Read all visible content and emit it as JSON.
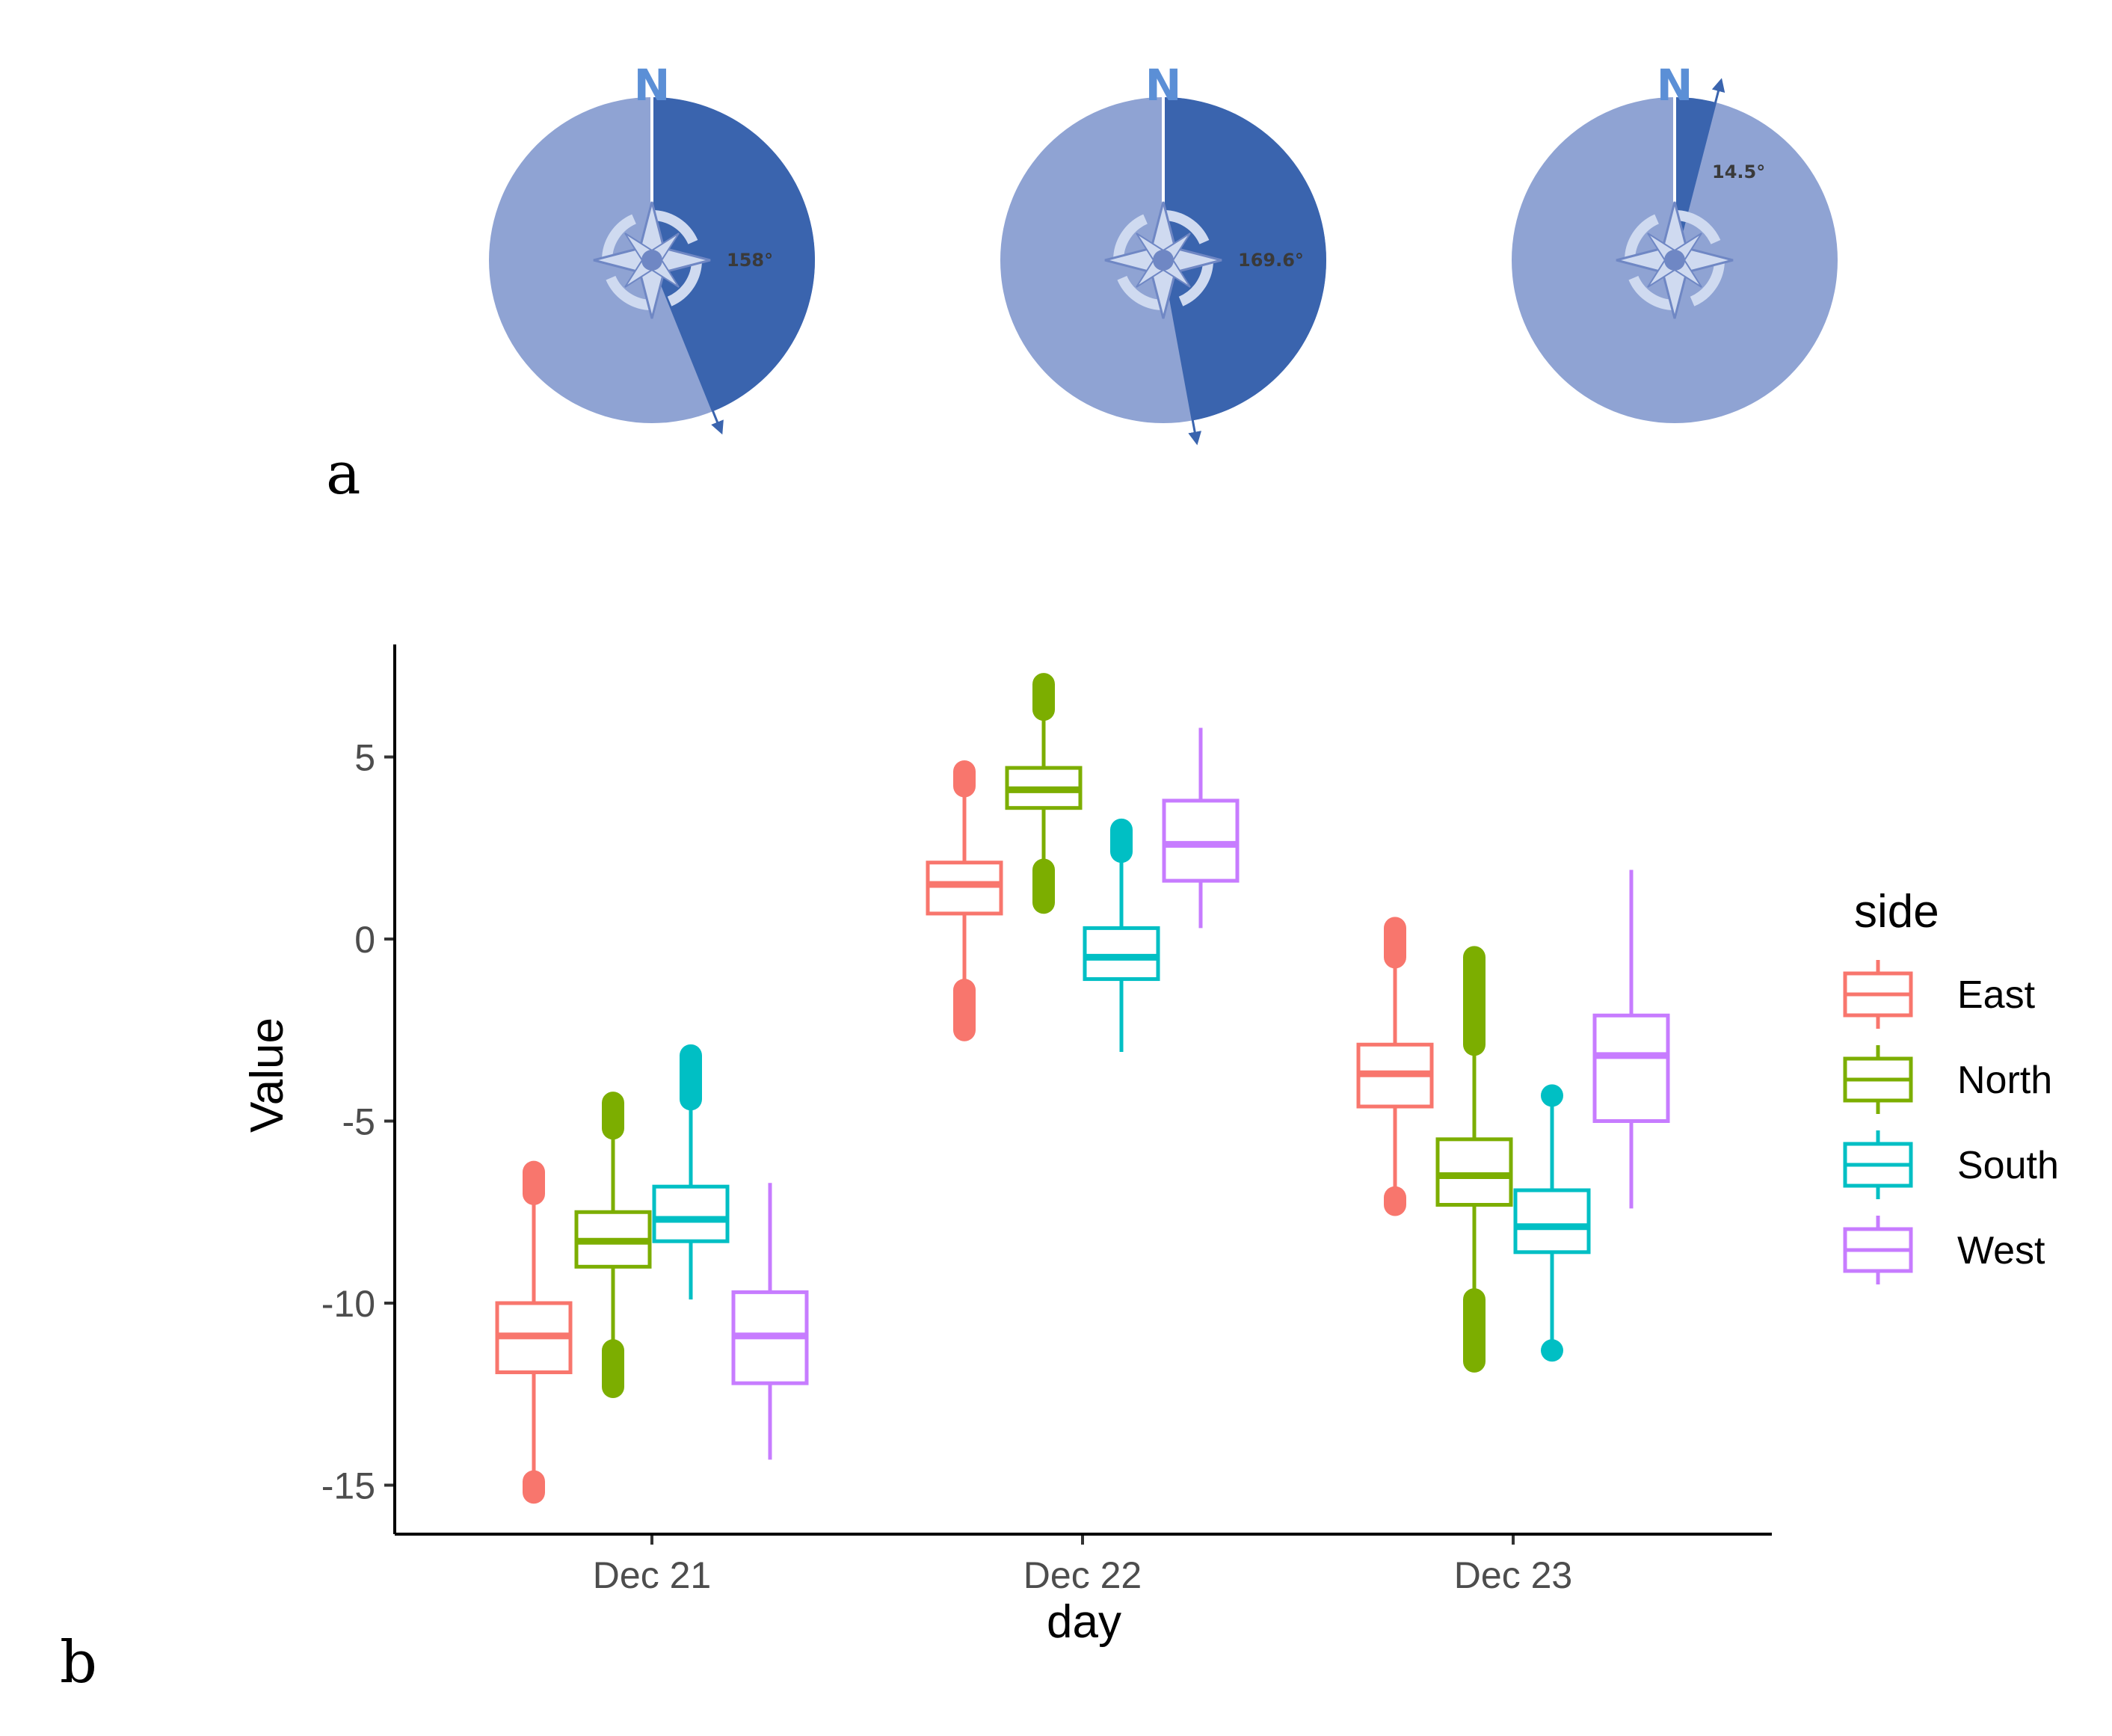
{
  "panel_labels": {
    "a": "a",
    "b": "b"
  },
  "compasses": [
    {
      "north_label": "N",
      "angle_deg": 158,
      "angle_text": "158°"
    },
    {
      "north_label": "N",
      "angle_deg": 169.6,
      "angle_text": "169.6°"
    },
    {
      "north_label": "N",
      "angle_deg": 14.5,
      "angle_text": "14.5°"
    }
  ],
  "colors": {
    "compass_light": "#8fa3d3",
    "compass_dark": "#3a64ae",
    "rose_fill": "#cfdaf0",
    "rose_stroke": "#6f87c4",
    "East": "#F8766D",
    "North": "#7CAE00",
    "South": "#00BFC4",
    "West": "#C77CFF"
  },
  "chart_data": {
    "type": "boxplot",
    "xlabel": "day",
    "ylabel": "Value",
    "categories": [
      "Dec 21",
      "Dec 22",
      "Dec 23"
    ],
    "yticks": [
      5,
      0,
      -5,
      -10,
      -15
    ],
    "ytick_labels": [
      "5",
      "0",
      "-5",
      "-10",
      "-15"
    ],
    "ylim": [
      -16.2,
      8
    ],
    "legend": {
      "title": "side",
      "position": "right",
      "entries": [
        "East",
        "North",
        "South",
        "West"
      ]
    },
    "series": [
      {
        "name": "East",
        "boxes": [
          {
            "q1": -11.9,
            "median": -10.9,
            "q3": -10.0,
            "whisker_low": -14.7,
            "whisker_high": -7.2,
            "outliers_low": [
              -14.9,
              -15.2
            ],
            "outliers_high": [
              -6.4,
              -7.0
            ]
          },
          {
            "q1": 0.7,
            "median": 1.5,
            "q3": 2.1,
            "whisker_low": -1.3,
            "whisker_high": 4.1,
            "outliers_low": [
              -1.4,
              -2.5
            ],
            "outliers_high": [
              4.2,
              4.6
            ]
          },
          {
            "q1": -4.6,
            "median": -3.7,
            "q3": -2.9,
            "whisker_low": -7.1,
            "whisker_high": -0.6,
            "outliers_low": [
              -7.1,
              -7.3
            ],
            "outliers_high": [
              -0.5,
              0.3
            ]
          }
        ]
      },
      {
        "name": "North",
        "boxes": [
          {
            "q1": -9.0,
            "median": -8.3,
            "q3": -7.5,
            "whisker_low": -11.2,
            "whisker_high": -5.2,
            "outliers_low": [
              -11.3,
              -12.3
            ],
            "outliers_high": [
              -4.5,
              -5.2
            ]
          },
          {
            "q1": 3.6,
            "median": 4.1,
            "q3": 4.7,
            "whisker_low": 2.0,
            "whisker_high": 6.2,
            "outliers_low": [
              1.0,
              1.9
            ],
            "outliers_high": [
              6.3,
              7.0
            ]
          },
          {
            "q1": -7.3,
            "median": -6.5,
            "q3": -5.5,
            "whisker_low": -9.8,
            "whisker_high": -2.9,
            "outliers_low": [
              -9.9,
              -11.6
            ],
            "outliers_high": [
              -0.5,
              -2.9
            ]
          }
        ]
      },
      {
        "name": "South",
        "boxes": [
          {
            "q1": -8.3,
            "median": -7.7,
            "q3": -6.8,
            "whisker_low": -9.9,
            "whisker_high": -4.5,
            "outliers_low": [],
            "outliers_high": [
              -3.2,
              -4.4
            ]
          },
          {
            "q1": -1.1,
            "median": -0.5,
            "q3": 0.3,
            "whisker_low": -3.1,
            "whisker_high": 2.3,
            "outliers_low": [],
            "outliers_high": [
              2.4,
              3.0
            ]
          },
          {
            "q1": -8.6,
            "median": -7.9,
            "q3": -6.9,
            "whisker_low": -11.0,
            "whisker_high": -4.5,
            "outliers_low": [
              -11.3
            ],
            "outliers_high": [
              -4.3
            ]
          }
        ]
      },
      {
        "name": "West",
        "boxes": [
          {
            "q1": -12.2,
            "median": -10.9,
            "q3": -9.7,
            "whisker_low": -14.3,
            "whisker_high": -6.7,
            "outliers_low": [],
            "outliers_high": []
          },
          {
            "q1": 1.6,
            "median": 2.6,
            "q3": 3.8,
            "whisker_low": 0.3,
            "whisker_high": 5.8,
            "outliers_low": [],
            "outliers_high": []
          },
          {
            "q1": -5.0,
            "median": -3.2,
            "q3": -2.1,
            "whisker_low": -7.4,
            "whisker_high": 1.9,
            "outliers_low": [],
            "outliers_high": []
          }
        ]
      }
    ]
  }
}
